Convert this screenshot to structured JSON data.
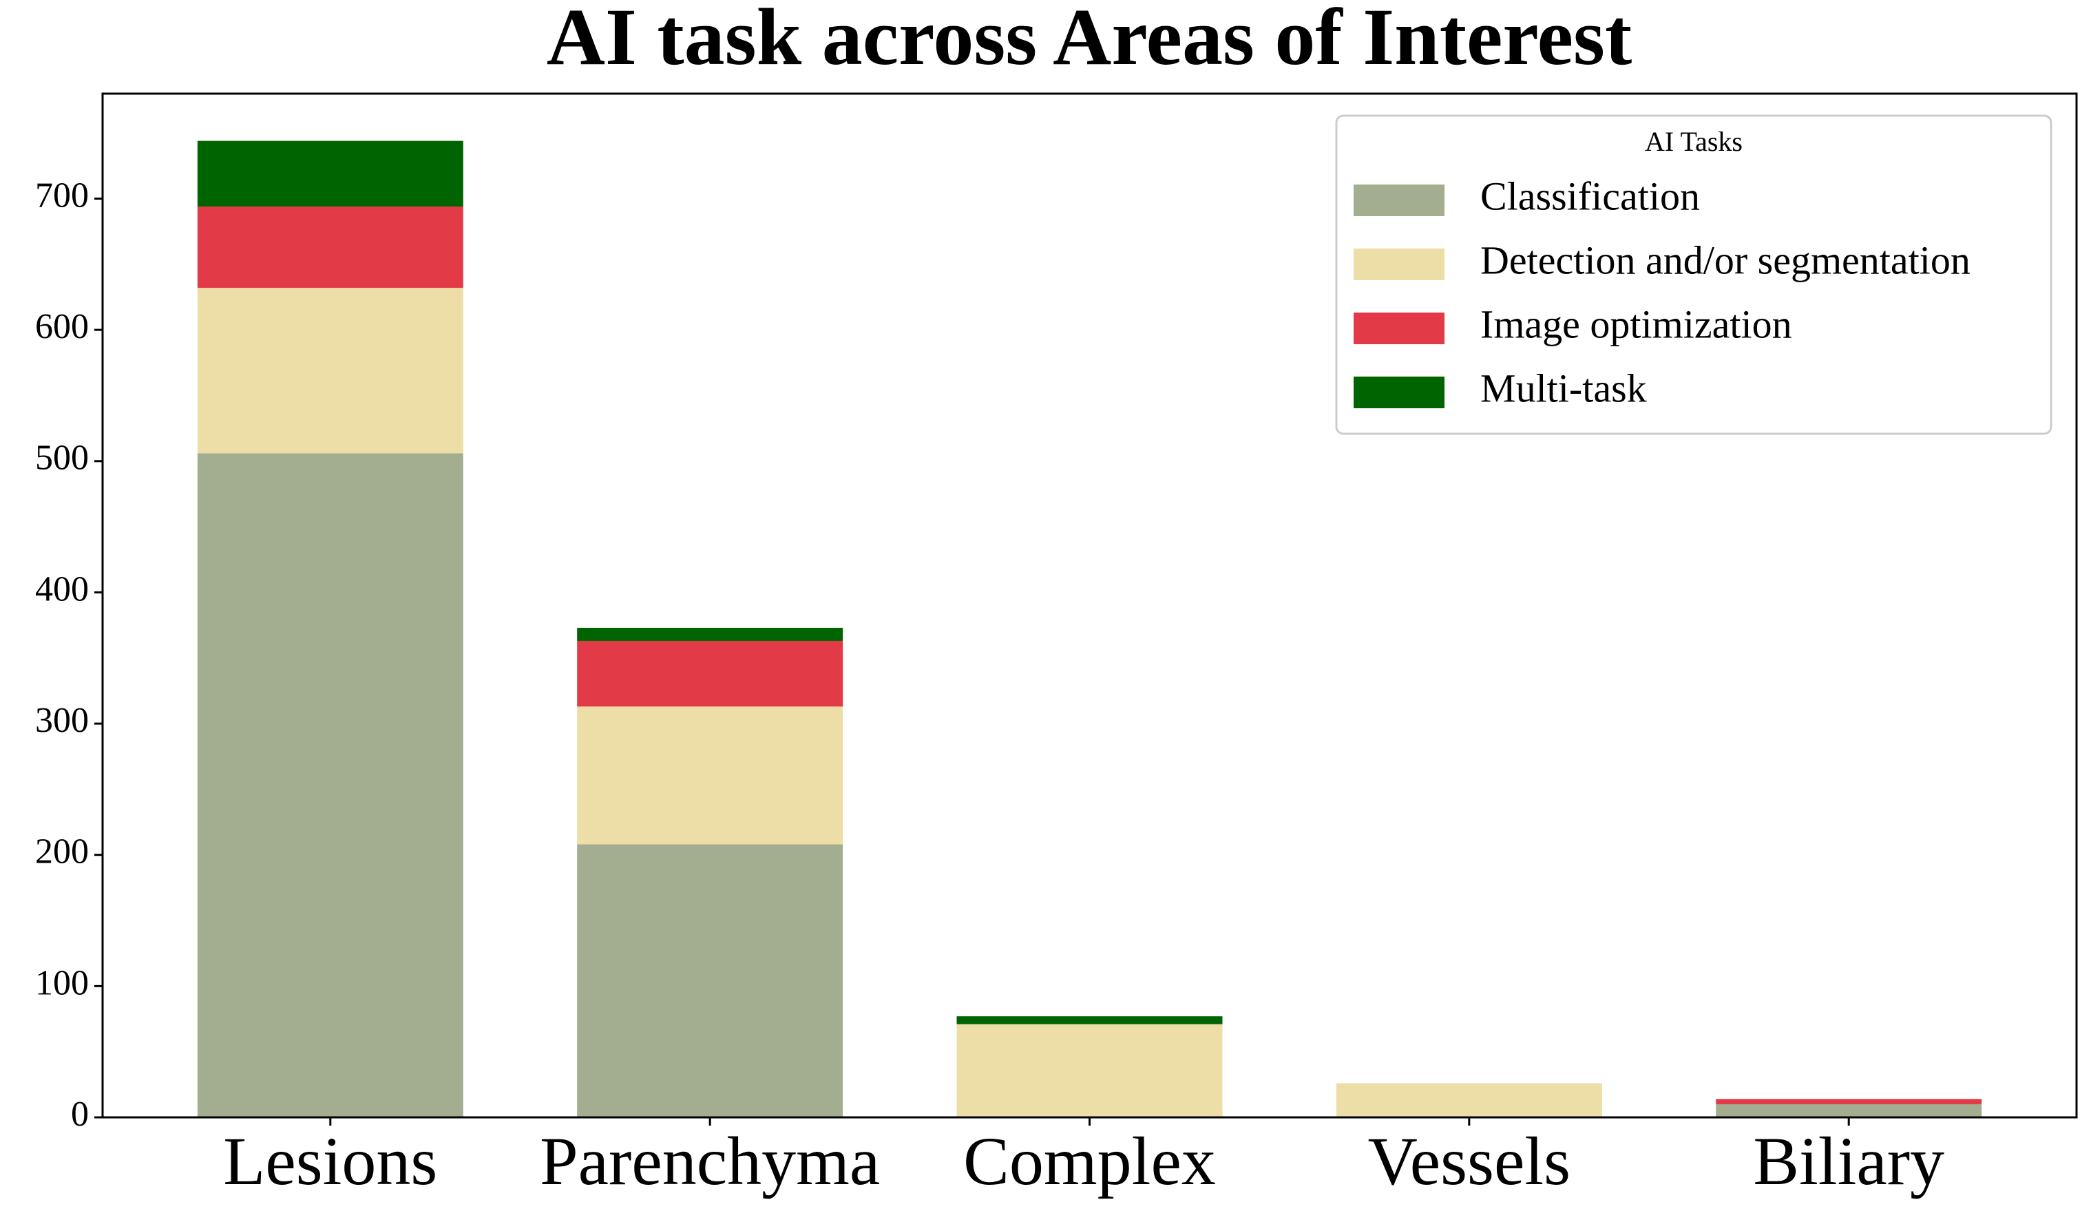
{
  "chart_data": {
    "type": "stacked_bar",
    "title": "AI task across Areas of Interest",
    "categories": [
      "Lesions",
      "Parenchyma",
      "Complex",
      "Vessels",
      "Biliary"
    ],
    "legend_title": "AI Tasks",
    "legend_position": "upper right",
    "series": [
      {
        "name": "Classification",
        "color": "#a3ae91",
        "values": [
          506,
          208,
          0,
          0,
          10
        ]
      },
      {
        "name": "Detection and/or segmentation",
        "color": "#ecdea6",
        "values": [
          126,
          105,
          71,
          26,
          0
        ]
      },
      {
        "name": "Image optimization",
        "color": "#e33a47",
        "values": [
          62,
          50,
          0,
          0,
          4
        ]
      },
      {
        "name": "Multi-task",
        "color": "#006400",
        "values": [
          50,
          10,
          6,
          0,
          0
        ]
      }
    ],
    "ylim": [
      0,
      780
    ],
    "yticks": [
      0,
      100,
      200,
      300,
      400,
      500,
      600,
      700
    ]
  }
}
